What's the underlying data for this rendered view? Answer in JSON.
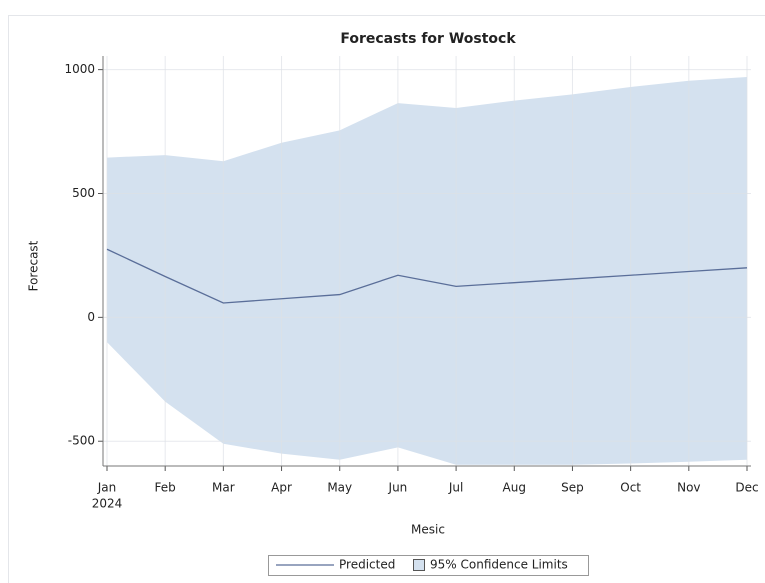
{
  "chart_data": {
    "type": "line",
    "title": "Forecasts for Wostock",
    "x_label": "Mesic",
    "y_label": "Forecast",
    "year_label": "2024",
    "categories": [
      "Jan",
      "Feb",
      "Mar",
      "Apr",
      "May",
      "Jun",
      "Jul",
      "Aug",
      "Sep",
      "Oct",
      "Nov",
      "Dec"
    ],
    "series": [
      {
        "name": "Predicted",
        "color": "#5a6e99",
        "values": [
          275,
          165,
          58,
          75,
          92,
          170,
          125,
          140,
          155,
          170,
          185,
          200
        ]
      }
    ],
    "band": {
      "name": "95% Confidence Limits",
      "color": "#d4e1ef",
      "upper": [
        645,
        655,
        630,
        705,
        755,
        865,
        845,
        875,
        900,
        930,
        955,
        970
      ],
      "lower": [
        -100,
        -340,
        -510,
        -550,
        -575,
        -525,
        -595,
        -595,
        -595,
        -590,
        -583,
        -575
      ]
    },
    "ylim": [
      -600,
      1055
    ],
    "yticks": [
      -500,
      0,
      500,
      1000
    ],
    "grid": true
  }
}
